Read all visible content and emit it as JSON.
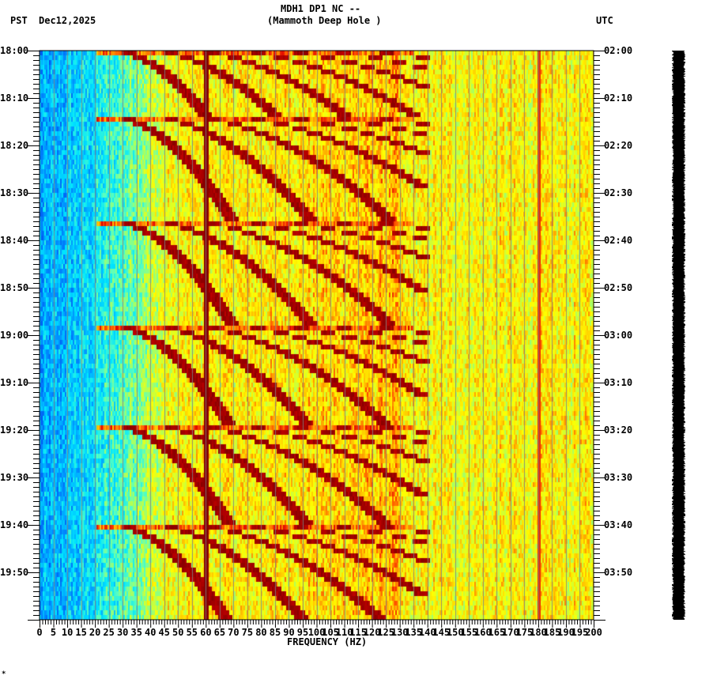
{
  "header": {
    "station_line": "MDH1 DP1 NC --",
    "site_line": "(Mammoth Deep Hole )",
    "left_tz": "PST",
    "date": "Dec12,2025",
    "right_tz": "UTC"
  },
  "footer_mark": "*",
  "chart_data": {
    "type": "heatmap",
    "title": "MDH1 DP1 NC -- (Mammoth Deep Hole )",
    "subtitle": "Dec12,2025",
    "xlabel": "FREQUENCY (HZ)",
    "ylabel_left": "PST",
    "ylabel_right": "UTC",
    "xlim": [
      0,
      200
    ],
    "x_ticks": [
      0,
      5,
      10,
      15,
      20,
      25,
      30,
      35,
      40,
      45,
      50,
      55,
      60,
      65,
      70,
      75,
      80,
      85,
      90,
      95,
      100,
      105,
      110,
      115,
      120,
      125,
      130,
      135,
      140,
      145,
      150,
      155,
      160,
      165,
      170,
      175,
      180,
      185,
      190,
      195,
      200
    ],
    "x_gridlines_every_hz": 5,
    "y_minutes_span": 120,
    "y_minor_tick_minutes": 1,
    "y_ticks_left": [
      "18:00",
      "18:10",
      "18:20",
      "18:30",
      "18:40",
      "18:50",
      "19:00",
      "19:10",
      "19:20",
      "19:30",
      "19:40",
      "19:50"
    ],
    "y_ticks_right": [
      "02:00",
      "02:10",
      "02:20",
      "02:30",
      "02:40",
      "02:50",
      "03:00",
      "03:10",
      "03:20",
      "03:30",
      "03:40",
      "03:50"
    ],
    "colormap": "jet",
    "color_levels": [
      "#0040ff",
      "#0090ff",
      "#00e0ff",
      "#40ffc0",
      "#a0ff60",
      "#ffff00",
      "#ffc000",
      "#ff6000",
      "#e00000",
      "#880000"
    ],
    "persistent_lines_hz": [
      60,
      180
    ],
    "chirp_cycles_start_minutes": [
      0,
      14,
      36,
      58,
      79,
      100
    ],
    "chirp_cycle_notes": "Repeating curved harmonic bands sweeping from ~20 Hz up to ~135 Hz, each cycle ~20-22 minutes",
    "noise_floor_description": "Low energy (blue) below ~20 Hz, high energy (yellow/orange) above ~130 Hz",
    "legend": "none"
  }
}
